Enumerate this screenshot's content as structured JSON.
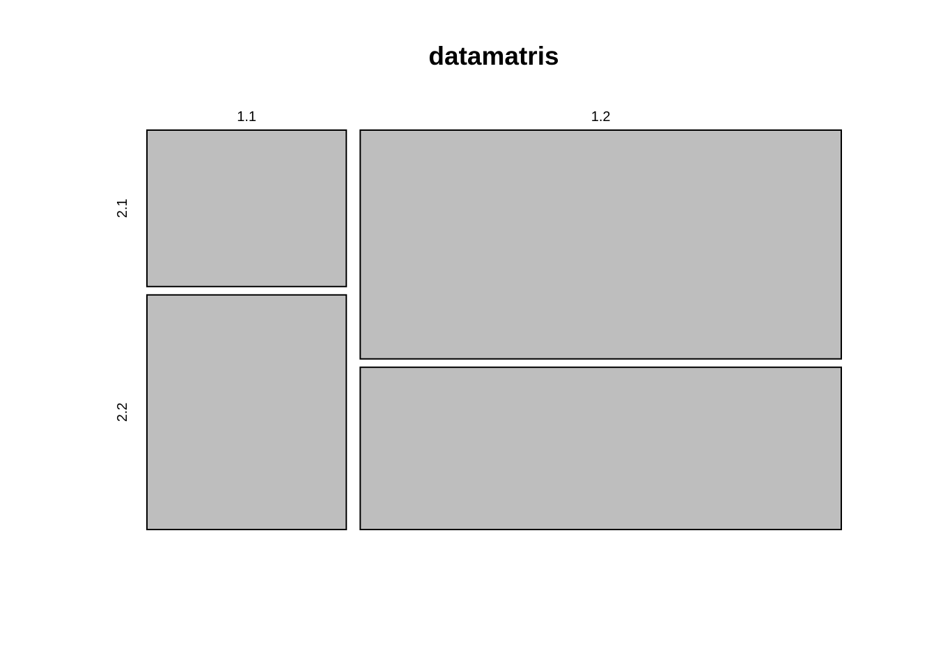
{
  "chart_data": {
    "type": "mosaic",
    "title": "datamatris",
    "x_categories": [
      "1.1",
      "1.2"
    ],
    "y_categories": [
      "2.1",
      "2.2"
    ],
    "column_proportions": [
      0.293,
      0.707
    ],
    "conditional_row_proportions": [
      {
        "column": "1.1",
        "values": [
          0.4,
          0.6
        ]
      },
      {
        "column": "1.2",
        "values": [
          0.585,
          0.415
        ]
      }
    ],
    "tile_color": "#bebebe",
    "border_color": "#000000"
  }
}
